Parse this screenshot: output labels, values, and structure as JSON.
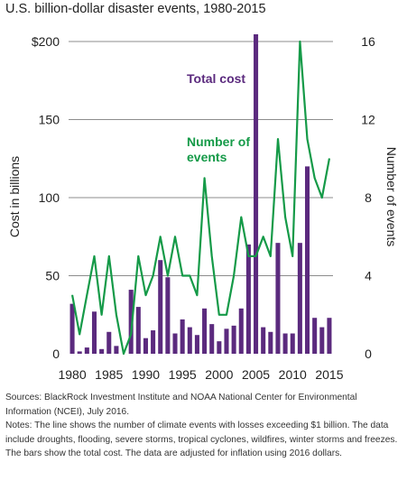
{
  "title": "U.S. billion-dollar disaster events, 1980-2015",
  "sources": "Sources: BlackRock Investment Institute and NOAA National Center for Environmental Information (NCEI), July 2016.",
  "notes": "Notes: The line shows the number of climate events with losses exceeding $1 billion. The data include droughts, flooding, severe storms, tropical cyclones, wildfires, winter storms and freezes. The bars show the total cost. The data are adjusted for inflation using 2016 dollars.",
  "colors": {
    "bars": "#5b2a7e",
    "line": "#159a48",
    "grid": "#8c8c8c"
  },
  "chart_data": {
    "type": "bar+line",
    "title": "U.S. billion-dollar disaster events, 1980-2015",
    "ylabel": "Cost in billions",
    "y2label": "Number of events",
    "ylim": [
      0,
      200
    ],
    "y2lim": [
      0,
      16
    ],
    "y_ticks": [
      "0",
      "50",
      "100",
      "150",
      "$200"
    ],
    "y2_ticks": [
      "0",
      "4",
      "8",
      "12",
      "16"
    ],
    "x_ticks": [
      "1980",
      "1985",
      "1990",
      "1995",
      "2000",
      "2005",
      "2010",
      "2015"
    ],
    "grid": true,
    "x": [
      1980,
      1981,
      1982,
      1983,
      1984,
      1985,
      1986,
      1987,
      1988,
      1989,
      1990,
      1991,
      1992,
      1993,
      1994,
      1995,
      1996,
      1997,
      1998,
      1999,
      2000,
      2001,
      2002,
      2003,
      2004,
      2005,
      2006,
      2007,
      2008,
      2009,
      2010,
      2011,
      2012,
      2013,
      2014,
      2015
    ],
    "series": [
      {
        "name": "Total cost",
        "type": "bar",
        "axis": "left",
        "values": [
          32,
          1.5,
          4,
          27,
          3,
          14,
          5,
          0,
          41,
          30,
          10,
          15,
          60,
          49,
          13,
          22,
          17,
          12,
          29,
          19,
          8,
          16,
          18,
          29,
          70,
          205,
          17,
          14,
          71,
          13,
          13,
          71,
          120,
          23,
          17,
          23
        ]
      },
      {
        "name": "Number of events",
        "type": "line",
        "axis": "right",
        "values": [
          3,
          1,
          3,
          5,
          2,
          5,
          2,
          0,
          1,
          5,
          3,
          4,
          6,
          4,
          6,
          4,
          4,
          3,
          9,
          5,
          2,
          2,
          4,
          7,
          5,
          5,
          6,
          5,
          11,
          7,
          5,
          16,
          11,
          9,
          8,
          10
        ]
      }
    ],
    "annotations": [
      {
        "text": "Total cost",
        "series": "Total cost"
      },
      {
        "text": "Number of events",
        "series": "Number of events"
      }
    ]
  }
}
